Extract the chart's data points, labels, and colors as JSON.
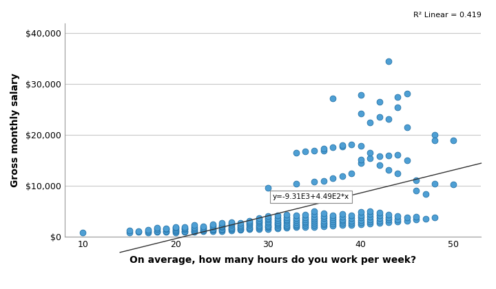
{
  "title": "",
  "xlabel": "On average, how many hours do you work per week?",
  "ylabel": "Gross monthly salary",
  "r2_label": "R² Linear = 0.419",
  "equation_label": "y=-9.31E3+4.49E2*x",
  "xlim": [
    8,
    53
  ],
  "ylim": [
    0,
    42000
  ],
  "xticks": [
    10,
    20,
    30,
    40,
    50
  ],
  "yticks": [
    0,
    10000,
    20000,
    30000,
    40000
  ],
  "ytick_labels": [
    "$0",
    "$10,000",
    "$20,000",
    "$30,000",
    "$40,000"
  ],
  "scatter_color": "#4e9fd4",
  "scatter_edgecolor": "#2372a8",
  "line_color": "#333333",
  "regression_intercept": -9310,
  "regression_slope": 449,
  "background_color": "#ffffff",
  "grid_color": "#c8c8c8",
  "scatter_points": [
    [
      10,
      800
    ],
    [
      15,
      900
    ],
    [
      15,
      1300
    ],
    [
      16,
      1000
    ],
    [
      16,
      1200
    ],
    [
      17,
      900
    ],
    [
      17,
      1100
    ],
    [
      17,
      1400
    ],
    [
      18,
      1000
    ],
    [
      18,
      1200
    ],
    [
      18,
      1500
    ],
    [
      18,
      1800
    ],
    [
      19,
      1000
    ],
    [
      19,
      1200
    ],
    [
      19,
      1500
    ],
    [
      19,
      1700
    ],
    [
      20,
      900
    ],
    [
      20,
      1100
    ],
    [
      20,
      1300
    ],
    [
      20,
      1500
    ],
    [
      20,
      1800
    ],
    [
      20,
      2000
    ],
    [
      21,
      1000
    ],
    [
      21,
      1200
    ],
    [
      21,
      1500
    ],
    [
      21,
      1700
    ],
    [
      21,
      2000
    ],
    [
      22,
      1000
    ],
    [
      22,
      1200
    ],
    [
      22,
      1400
    ],
    [
      22,
      1700
    ],
    [
      22,
      2000
    ],
    [
      22,
      2300
    ],
    [
      23,
      1100
    ],
    [
      23,
      1300
    ],
    [
      23,
      1500
    ],
    [
      23,
      1800
    ],
    [
      23,
      2100
    ],
    [
      24,
      1200
    ],
    [
      24,
      1400
    ],
    [
      24,
      1600
    ],
    [
      24,
      1900
    ],
    [
      24,
      2200
    ],
    [
      24,
      2500
    ],
    [
      25,
      1200
    ],
    [
      25,
      1400
    ],
    [
      25,
      1600
    ],
    [
      25,
      1900
    ],
    [
      25,
      2100
    ],
    [
      25,
      2400
    ],
    [
      25,
      2700
    ],
    [
      26,
      1300
    ],
    [
      26,
      1500
    ],
    [
      26,
      1700
    ],
    [
      26,
      2000
    ],
    [
      26,
      2300
    ],
    [
      26,
      2600
    ],
    [
      26,
      2900
    ],
    [
      27,
      1400
    ],
    [
      27,
      1600
    ],
    [
      27,
      1800
    ],
    [
      27,
      2100
    ],
    [
      27,
      2400
    ],
    [
      27,
      2700
    ],
    [
      28,
      1500
    ],
    [
      28,
      1700
    ],
    [
      28,
      2000
    ],
    [
      28,
      2300
    ],
    [
      28,
      2600
    ],
    [
      28,
      2900
    ],
    [
      28,
      3200
    ],
    [
      29,
      1600
    ],
    [
      29,
      1800
    ],
    [
      29,
      2100
    ],
    [
      29,
      2400
    ],
    [
      29,
      2700
    ],
    [
      29,
      3000
    ],
    [
      29,
      3300
    ],
    [
      29,
      3700
    ],
    [
      30,
      1600
    ],
    [
      30,
      1900
    ],
    [
      30,
      2100
    ],
    [
      30,
      2400
    ],
    [
      30,
      2700
    ],
    [
      30,
      3000
    ],
    [
      30,
      3400
    ],
    [
      30,
      3700
    ],
    [
      30,
      4100
    ],
    [
      31,
      1700
    ],
    [
      31,
      2000
    ],
    [
      31,
      2300
    ],
    [
      31,
      2600
    ],
    [
      31,
      2900
    ],
    [
      31,
      3300
    ],
    [
      31,
      3700
    ],
    [
      31,
      4200
    ],
    [
      32,
      1800
    ],
    [
      32,
      2100
    ],
    [
      32,
      2400
    ],
    [
      32,
      2800
    ],
    [
      32,
      3100
    ],
    [
      32,
      3500
    ],
    [
      32,
      3900
    ],
    [
      32,
      4400
    ],
    [
      33,
      1900
    ],
    [
      33,
      2200
    ],
    [
      33,
      2500
    ],
    [
      33,
      2900
    ],
    [
      33,
      3300
    ],
    [
      33,
      3700
    ],
    [
      33,
      4200
    ],
    [
      34,
      2000
    ],
    [
      34,
      2300
    ],
    [
      34,
      2700
    ],
    [
      34,
      3000
    ],
    [
      34,
      3500
    ],
    [
      34,
      3900
    ],
    [
      34,
      4400
    ],
    [
      35,
      2000
    ],
    [
      35,
      2400
    ],
    [
      35,
      2700
    ],
    [
      35,
      3100
    ],
    [
      35,
      3600
    ],
    [
      35,
      4000
    ],
    [
      35,
      4500
    ],
    [
      35,
      5000
    ],
    [
      36,
      2100
    ],
    [
      36,
      2500
    ],
    [
      36,
      2800
    ],
    [
      36,
      3200
    ],
    [
      36,
      3700
    ],
    [
      36,
      4100
    ],
    [
      36,
      4700
    ],
    [
      37,
      2200
    ],
    [
      37,
      2600
    ],
    [
      37,
      3000
    ],
    [
      37,
      3400
    ],
    [
      37,
      3800
    ],
    [
      37,
      4300
    ],
    [
      38,
      2300
    ],
    [
      38,
      2700
    ],
    [
      38,
      3100
    ],
    [
      38,
      3500
    ],
    [
      38,
      4000
    ],
    [
      38,
      4500
    ],
    [
      39,
      2400
    ],
    [
      39,
      2800
    ],
    [
      39,
      3200
    ],
    [
      39,
      3700
    ],
    [
      39,
      4200
    ],
    [
      40,
      2500
    ],
    [
      40,
      2900
    ],
    [
      40,
      3300
    ],
    [
      40,
      3800
    ],
    [
      40,
      4300
    ],
    [
      40,
      4900
    ],
    [
      41,
      2600
    ],
    [
      41,
      3000
    ],
    [
      41,
      3500
    ],
    [
      41,
      4000
    ],
    [
      41,
      4500
    ],
    [
      41,
      5100
    ],
    [
      42,
      2700
    ],
    [
      42,
      3200
    ],
    [
      42,
      3700
    ],
    [
      42,
      4200
    ],
    [
      42,
      4800
    ],
    [
      43,
      2900
    ],
    [
      43,
      3400
    ],
    [
      43,
      3900
    ],
    [
      43,
      4400
    ],
    [
      44,
      3000
    ],
    [
      44,
      3500
    ],
    [
      44,
      4100
    ],
    [
      45,
      3200
    ],
    [
      45,
      3800
    ],
    [
      46,
      3400
    ],
    [
      46,
      4000
    ],
    [
      47,
      3600
    ],
    [
      47,
      8500
    ],
    [
      48,
      3800
    ],
    [
      48,
      10500
    ],
    [
      50,
      10300
    ],
    [
      30,
      9700
    ],
    [
      33,
      10400
    ],
    [
      33,
      16500
    ],
    [
      34,
      16800
    ],
    [
      35,
      10800
    ],
    [
      35,
      17000
    ],
    [
      36,
      11000
    ],
    [
      36,
      16900
    ],
    [
      36,
      17300
    ],
    [
      37,
      11500
    ],
    [
      37,
      17600
    ],
    [
      37,
      27200
    ],
    [
      38,
      12000
    ],
    [
      38,
      17800
    ],
    [
      38,
      18000
    ],
    [
      39,
      12500
    ],
    [
      39,
      18200
    ],
    [
      40,
      14500
    ],
    [
      40,
      15200
    ],
    [
      40,
      17900
    ],
    [
      40,
      24200
    ],
    [
      40,
      27900
    ],
    [
      41,
      15500
    ],
    [
      41,
      16500
    ],
    [
      41,
      22500
    ],
    [
      42,
      14100
    ],
    [
      42,
      15800
    ],
    [
      42,
      23500
    ],
    [
      42,
      26500
    ],
    [
      43,
      13100
    ],
    [
      43,
      16000
    ],
    [
      43,
      23100
    ],
    [
      43,
      34500
    ],
    [
      44,
      12500
    ],
    [
      44,
      16100
    ],
    [
      44,
      25500
    ],
    [
      44,
      27500
    ],
    [
      45,
      15100
    ],
    [
      45,
      21500
    ],
    [
      45,
      28100
    ],
    [
      46,
      9100
    ],
    [
      46,
      11100
    ],
    [
      48,
      20000
    ],
    [
      48,
      19000
    ],
    [
      50,
      19000
    ]
  ]
}
